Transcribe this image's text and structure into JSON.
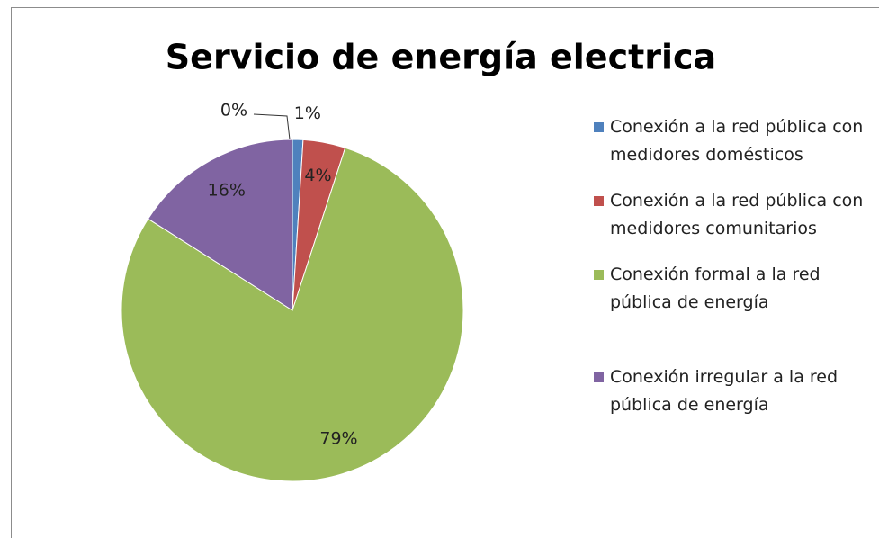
{
  "chart_data": {
    "type": "pie",
    "title": "Servicio de energía electrica",
    "categories": [
      "Conexión a la red pública con medidores domésticos",
      "Conexión a la red pública con medidores comunitarios",
      "Conexión formal a la red pública de energía",
      "Conexión irregular a la red pública de energía",
      null
    ],
    "values": [
      1,
      4,
      79,
      16,
      0
    ],
    "value_labels": [
      "1%",
      "4%",
      "79%",
      "16%",
      "0%"
    ],
    "colors": [
      "#4f81bd",
      "#c0504d",
      "#9bbb59",
      "#8064a2",
      "#4bacc6"
    ],
    "legend": "right"
  }
}
